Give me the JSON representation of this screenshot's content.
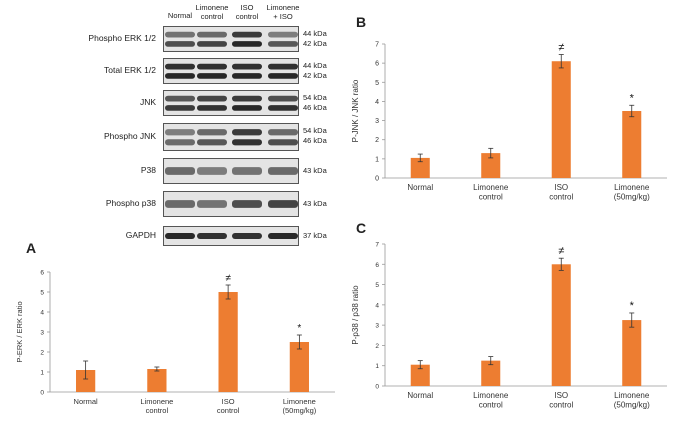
{
  "blot": {
    "lanes": [
      "Normal",
      "Limonene control",
      "ISO control",
      "Limonene + ISO"
    ],
    "rows": [
      {
        "label": "Phospho ERK 1/2",
        "kda": [
          "44 kDa",
          "42 kDa"
        ],
        "bands": 2
      },
      {
        "label": "Total ERK 1/2",
        "kda": [
          "44 kDa",
          "42 kDa"
        ],
        "bands": 2
      },
      {
        "label": "JNK",
        "kda": [
          "54 kDa",
          "46 kDa"
        ],
        "bands": 2
      },
      {
        "label": "Phospho JNK",
        "kda": [
          "54 kDa",
          "46 kDa"
        ],
        "bands": 2
      },
      {
        "label": "P38",
        "kda": [
          "43 kDa"
        ],
        "bands": 1
      },
      {
        "label": "Phospho p38",
        "kda": [
          "43 kDa"
        ],
        "bands": 1
      },
      {
        "label": "GAPDH",
        "kda": [
          "37 kDa"
        ],
        "bands": 1
      }
    ]
  },
  "colors": {
    "bar": "#ED7D31",
    "axis": "#999999",
    "text": "#222222"
  },
  "chart_data": [
    {
      "panel": "A",
      "type": "bar",
      "categories": [
        "Normal",
        "Limonene control",
        "ISO control",
        "Limonene (50mg/kg)"
      ],
      "values": [
        1.1,
        1.15,
        5.0,
        2.5
      ],
      "errors": [
        0.45,
        0.1,
        0.35,
        0.35
      ],
      "annotations": [
        "",
        "",
        "≠",
        "*"
      ],
      "title": "",
      "xlabel": "",
      "ylabel": "P-ERK / ERK ratio",
      "ylim": [
        0,
        6
      ],
      "yticks": [
        0,
        1,
        2,
        3,
        4,
        5,
        6
      ]
    },
    {
      "panel": "B",
      "type": "bar",
      "categories": [
        "Normal",
        "Limonene control",
        "ISO control",
        "Limonene (50mg/kg)"
      ],
      "values": [
        1.05,
        1.3,
        6.1,
        3.5
      ],
      "errors": [
        0.2,
        0.25,
        0.35,
        0.3
      ],
      "annotations": [
        "",
        "",
        "≠",
        "*"
      ],
      "title": "",
      "xlabel": "",
      "ylabel": "P-JNK / JNK ratio",
      "ylim": [
        0,
        7
      ],
      "yticks": [
        0,
        1,
        2,
        3,
        4,
        5,
        6,
        7
      ]
    },
    {
      "panel": "C",
      "type": "bar",
      "categories": [
        "Normal",
        "Limonene control",
        "ISO control",
        "Limonene (50mg/kg)"
      ],
      "values": [
        1.05,
        1.25,
        6.0,
        3.25
      ],
      "errors": [
        0.2,
        0.2,
        0.3,
        0.35
      ],
      "annotations": [
        "",
        "",
        "≠",
        "*"
      ],
      "title": "",
      "xlabel": "",
      "ylabel": "P-p38 / p38 ratio",
      "ylim": [
        0,
        7
      ],
      "yticks": [
        0,
        1,
        2,
        3,
        4,
        5,
        6,
        7
      ]
    }
  ]
}
